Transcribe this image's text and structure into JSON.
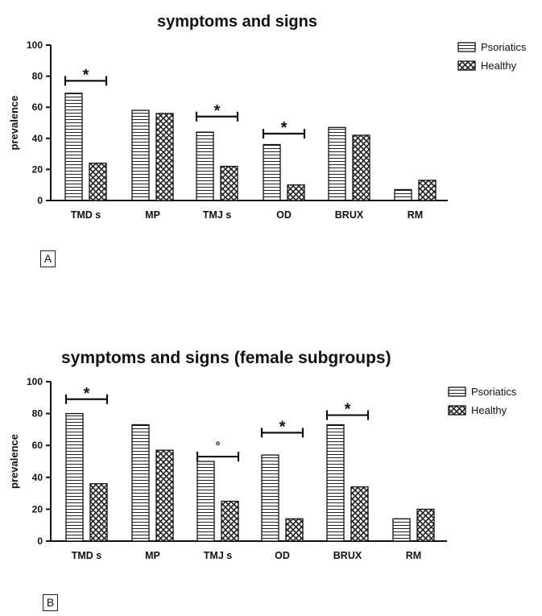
{
  "panels": [
    {
      "tag": "A",
      "chart_data": {
        "type": "bar",
        "title": "symptoms and signs",
        "ylabel": "prevalence",
        "xlabel": "",
        "ylim": [
          0,
          100
        ],
        "yticks": [
          0,
          20,
          40,
          60,
          80,
          100
        ],
        "categories": [
          "TMD s",
          "MP",
          "TMJ s",
          "OD",
          "BRUX",
          "RM"
        ],
        "series": [
          {
            "name": "Psoriatics",
            "pattern": "horizontal-lines",
            "values": [
              69,
              58,
              44,
              36,
              47,
              7
            ]
          },
          {
            "name": "Healthy",
            "pattern": "crosshatch",
            "values": [
              24,
              56,
              22,
              10,
              42,
              13
            ]
          }
        ],
        "annotations": [
          {
            "category": "TMD s",
            "symbol": "*",
            "level": 77
          },
          {
            "category": "TMJ s",
            "symbol": "*",
            "level": 54
          },
          {
            "category": "OD",
            "symbol": "*",
            "level": 43
          }
        ],
        "legend": "top-right",
        "grid": false
      }
    },
    {
      "tag": "B",
      "chart_data": {
        "type": "bar",
        "title": "symptoms and signs (female subgroups)",
        "ylabel": "prevalence",
        "xlabel": "",
        "ylim": [
          0,
          100
        ],
        "yticks": [
          0,
          20,
          40,
          60,
          80,
          100
        ],
        "categories": [
          "TMD s",
          "MP",
          "TMJ s",
          "OD",
          "BRUX",
          "RM"
        ],
        "series": [
          {
            "name": "Psoriatics",
            "pattern": "horizontal-lines",
            "values": [
              80,
              73,
              50,
              54,
              73,
              14
            ]
          },
          {
            "name": "Healthy",
            "pattern": "crosshatch",
            "values": [
              36,
              57,
              25,
              14,
              34,
              20
            ]
          }
        ],
        "annotations": [
          {
            "category": "TMD s",
            "symbol": "*",
            "level": 89
          },
          {
            "category": "TMJ s",
            "symbol": "°",
            "level": 53
          },
          {
            "category": "OD",
            "symbol": "*",
            "level": 68
          },
          {
            "category": "BRUX",
            "symbol": "*",
            "level": 79
          }
        ],
        "legend": "top-right",
        "grid": false
      }
    }
  ]
}
